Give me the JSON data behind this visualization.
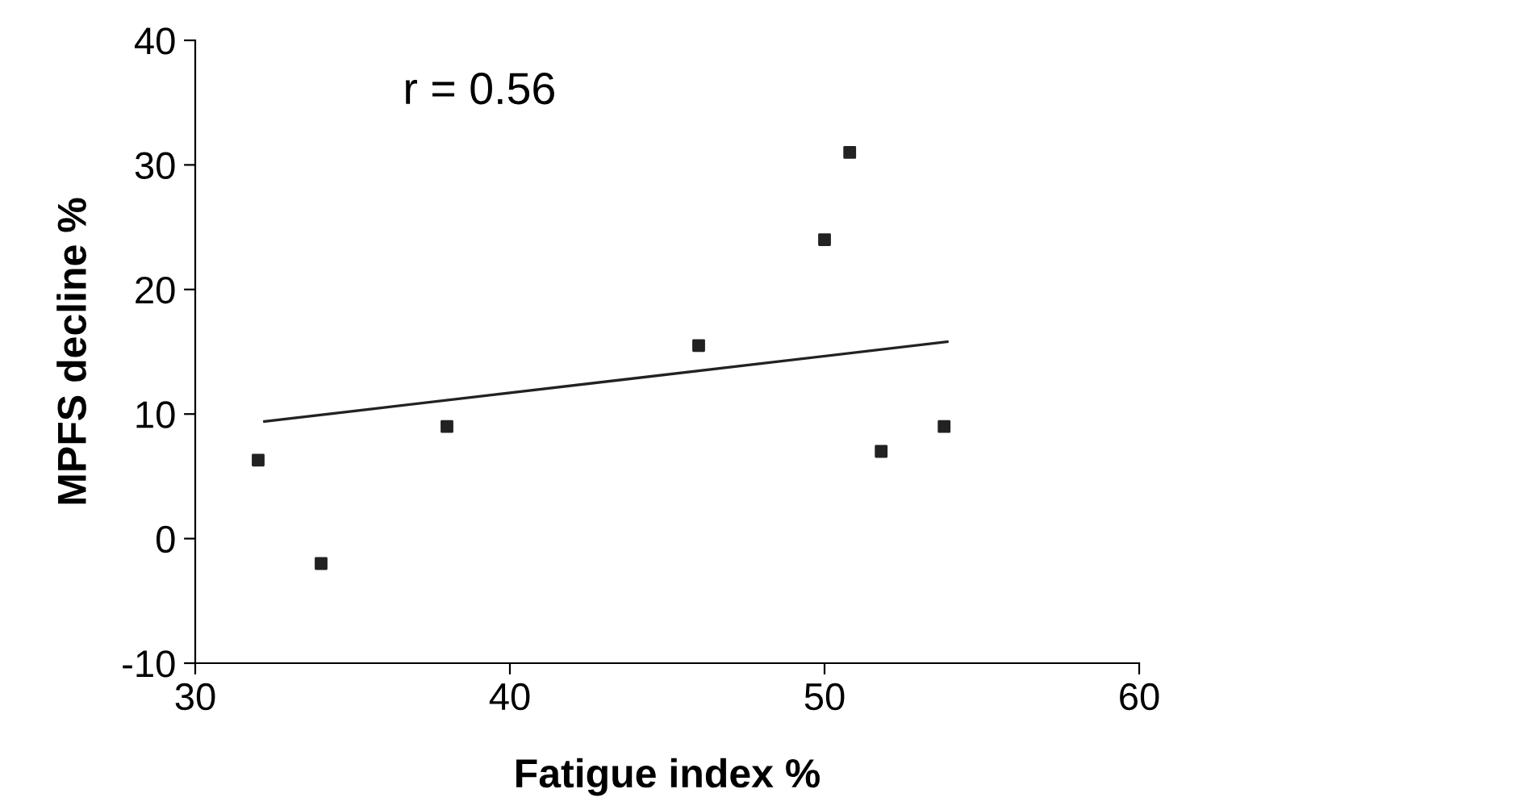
{
  "chart_data": {
    "type": "scatter",
    "xlabel": "Fatigue index %",
    "ylabel": "MPFS decline %",
    "annotations": [
      "r = 0.56"
    ],
    "xlim": [
      30,
      60
    ],
    "ylim": [
      -10,
      40
    ],
    "xticks": [
      30,
      40,
      50,
      60
    ],
    "yticks": [
      -10,
      0,
      10,
      20,
      30,
      40
    ],
    "grid": false,
    "series": [
      {
        "marker": "square",
        "color": "#222222",
        "x": [
          32,
          34,
          38,
          46,
          50,
          50.8,
          51.8,
          53.8
        ],
        "values": [
          6.3,
          -2,
          9,
          15.5,
          24,
          31,
          7,
          9
        ]
      },
      {
        "type": "line",
        "marker": "none",
        "color": "#222222",
        "x": [
          32.2,
          53.9
        ],
        "values": [
          9.4,
          15.8
        ]
      }
    ]
  }
}
